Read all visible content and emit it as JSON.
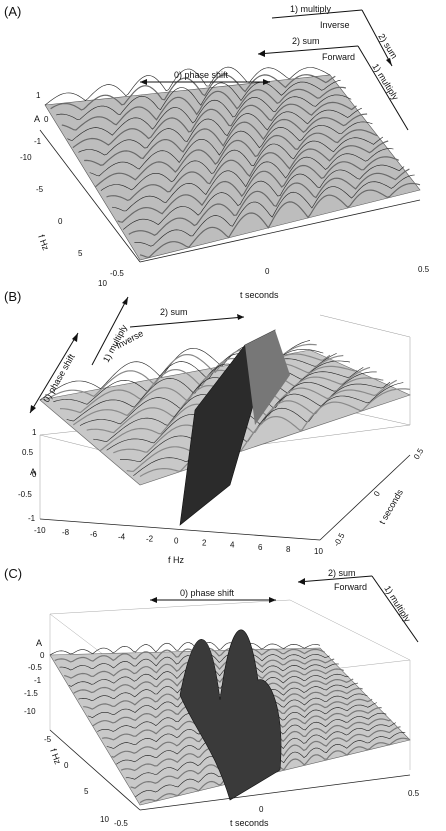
{
  "panels": [
    {
      "letter": "(A)",
      "a_label": "A",
      "z_ticks": [
        "1",
        "0",
        "-1"
      ],
      "f_label": "f Hz",
      "f_ticks": [
        "-10",
        "-5",
        "0",
        "5",
        "10"
      ],
      "t_label": "t seconds",
      "t_ticks": [
        "-0.5",
        "0",
        "0.5"
      ],
      "phase_shift": "0) phase shift",
      "multiply_top": "1) multiply",
      "inverse": "Inverse",
      "sum_right": "2) sum",
      "sum_left": "2) sum",
      "forward": "Forward",
      "multiply_right": "1) multiply"
    },
    {
      "letter": "(B)",
      "a_label": "A",
      "z_ticks": [
        "1",
        "0.5",
        "0",
        "-0.5",
        "-1"
      ],
      "f_label": "f Hz",
      "f_ticks": [
        "-10",
        "-8",
        "-6",
        "-4",
        "-2",
        "0",
        "2",
        "4",
        "6",
        "8",
        "10"
      ],
      "t_label": "t seconds",
      "t_ticks": [
        "0.5",
        "0",
        "-0.5"
      ],
      "multiply": "1) multiply",
      "inverse": "Inverse",
      "sum": "2) sum",
      "phase_shift": "0) phase shift"
    },
    {
      "letter": "(C)",
      "a_label": "A",
      "z_ticks": [
        "0",
        "-0.5",
        "-1",
        "-1.5"
      ],
      "f_label": "f Hz",
      "f_ticks": [
        "-10",
        "-5",
        "0",
        "5",
        "10"
      ],
      "t_label": "t seconds",
      "t_ticks": [
        "-0.5",
        "0",
        "0.5"
      ],
      "phase_shift": "0) phase shift",
      "sum": "2) sum",
      "forward": "Forward",
      "multiply": "1) multiply"
    }
  ]
}
